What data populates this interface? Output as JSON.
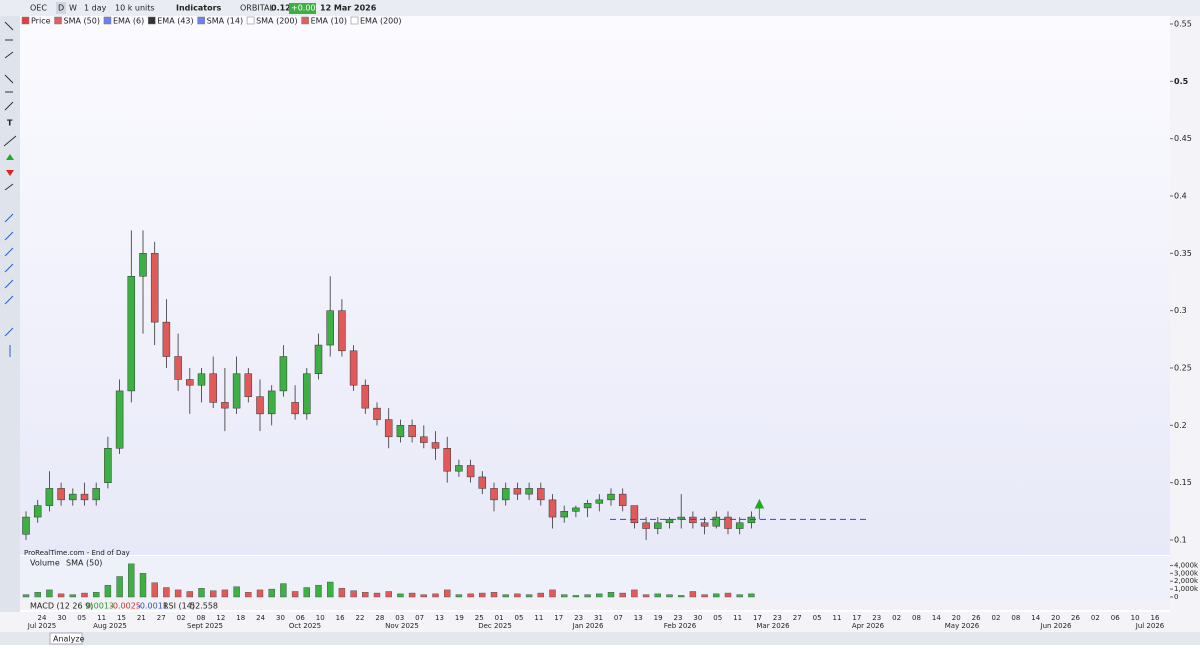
{
  "toolbar": {
    "symbol": "OEC",
    "period_buttons": [
      "D",
      "W"
    ],
    "interval": "1 day",
    "units": "10 k units",
    "indicators": "Indicators",
    "name": "ORBITAL",
    "price": "0.120",
    "change": "+0.00%",
    "date": "12 Mar 2026"
  },
  "legend": [
    {
      "name": "Price",
      "color": "#e04040"
    },
    {
      "name": "SMA (50)",
      "color": "#e06060"
    },
    {
      "name": "EMA (6)",
      "color": "#6f7ff0"
    },
    {
      "name": "EMA (43)",
      "color": "#333333"
    },
    {
      "name": "SMA (14)",
      "color": "#6f7ff0"
    },
    {
      "name": "SMA (200)",
      "color": "#ffffff"
    },
    {
      "name": "EMA (10)",
      "color": "#e06060"
    },
    {
      "name": "EMA (200)",
      "color": "#ffffff"
    }
  ],
  "watermark": "ProRealTime.com - End of Day",
  "chart_data": {
    "type": "candlestick",
    "up_color": "#3cb043",
    "down_color": "#e05a5a",
    "ylim": [
      0.1,
      0.55
    ],
    "yticks": [
      0.1,
      0.15,
      0.2,
      0.25,
      0.3,
      0.35,
      0.4,
      0.45,
      0.5,
      0.55
    ],
    "candles": [
      [
        0.105,
        0.125,
        0.1,
        0.12
      ],
      [
        0.12,
        0.135,
        0.115,
        0.13
      ],
      [
        0.13,
        0.16,
        0.125,
        0.145
      ],
      [
        0.145,
        0.15,
        0.13,
        0.135
      ],
      [
        0.135,
        0.145,
        0.13,
        0.14
      ],
      [
        0.14,
        0.15,
        0.13,
        0.135
      ],
      [
        0.135,
        0.15,
        0.13,
        0.145
      ],
      [
        0.15,
        0.19,
        0.145,
        0.18
      ],
      [
        0.18,
        0.24,
        0.175,
        0.23
      ],
      [
        0.23,
        0.37,
        0.22,
        0.33
      ],
      [
        0.33,
        0.37,
        0.28,
        0.35
      ],
      [
        0.35,
        0.36,
        0.27,
        0.29
      ],
      [
        0.29,
        0.31,
        0.25,
        0.26
      ],
      [
        0.26,
        0.28,
        0.23,
        0.24
      ],
      [
        0.24,
        0.25,
        0.21,
        0.235
      ],
      [
        0.235,
        0.25,
        0.22,
        0.245
      ],
      [
        0.245,
        0.26,
        0.215,
        0.22
      ],
      [
        0.22,
        0.25,
        0.195,
        0.215
      ],
      [
        0.215,
        0.26,
        0.21,
        0.245
      ],
      [
        0.245,
        0.25,
        0.22,
        0.225
      ],
      [
        0.225,
        0.24,
        0.195,
        0.21
      ],
      [
        0.21,
        0.235,
        0.2,
        0.23
      ],
      [
        0.23,
        0.27,
        0.225,
        0.26
      ],
      [
        0.22,
        0.235,
        0.205,
        0.21
      ],
      [
        0.21,
        0.25,
        0.205,
        0.245
      ],
      [
        0.245,
        0.28,
        0.24,
        0.27
      ],
      [
        0.27,
        0.33,
        0.26,
        0.3
      ],
      [
        0.3,
        0.31,
        0.26,
        0.265
      ],
      [
        0.265,
        0.27,
        0.23,
        0.235
      ],
      [
        0.235,
        0.24,
        0.21,
        0.215
      ],
      [
        0.215,
        0.22,
        0.2,
        0.205
      ],
      [
        0.205,
        0.215,
        0.18,
        0.19
      ],
      [
        0.19,
        0.205,
        0.185,
        0.2
      ],
      [
        0.2,
        0.205,
        0.185,
        0.19
      ],
      [
        0.19,
        0.2,
        0.18,
        0.185
      ],
      [
        0.185,
        0.195,
        0.17,
        0.18
      ],
      [
        0.18,
        0.19,
        0.15,
        0.16
      ],
      [
        0.16,
        0.17,
        0.155,
        0.165
      ],
      [
        0.165,
        0.17,
        0.15,
        0.155
      ],
      [
        0.155,
        0.16,
        0.14,
        0.145
      ],
      [
        0.145,
        0.15,
        0.125,
        0.135
      ],
      [
        0.135,
        0.15,
        0.13,
        0.145
      ],
      [
        0.145,
        0.15,
        0.135,
        0.14
      ],
      [
        0.14,
        0.15,
        0.135,
        0.145
      ],
      [
        0.145,
        0.15,
        0.13,
        0.135
      ],
      [
        0.135,
        0.14,
        0.11,
        0.12
      ],
      [
        0.12,
        0.13,
        0.115,
        0.125
      ],
      [
        0.125,
        0.13,
        0.12,
        0.128
      ],
      [
        0.128,
        0.135,
        0.12,
        0.132
      ],
      [
        0.132,
        0.14,
        0.125,
        0.135
      ],
      [
        0.135,
        0.145,
        0.13,
        0.14
      ],
      [
        0.14,
        0.145,
        0.125,
        0.13
      ],
      [
        0.13,
        0.13,
        0.11,
        0.115
      ],
      [
        0.115,
        0.12,
        0.1,
        0.11
      ],
      [
        0.11,
        0.12,
        0.105,
        0.115
      ],
      [
        0.115,
        0.12,
        0.11,
        0.118
      ],
      [
        0.118,
        0.14,
        0.11,
        0.12
      ],
      [
        0.12,
        0.125,
        0.11,
        0.115
      ],
      [
        0.115,
        0.12,
        0.105,
        0.112
      ],
      [
        0.112,
        0.125,
        0.11,
        0.12
      ],
      [
        0.12,
        0.125,
        0.105,
        0.11
      ],
      [
        0.11,
        0.12,
        0.105,
        0.115
      ],
      [
        0.115,
        0.125,
        0.11,
        0.12
      ]
    ],
    "hline": 0.118,
    "volume_title": "Volume",
    "volume_sma": "SMA (50)",
    "volume_ylim": [
      0,
      4500
    ],
    "volume_yticks": [
      {
        "value": 4000,
        "label": "4,000k"
      },
      {
        "value": 3000,
        "label": "3,000k"
      },
      {
        "value": 2000,
        "label": "2,000k"
      },
      {
        "value": 1000,
        "label": "1,000k"
      },
      0
    ],
    "volumes": [
      300,
      600,
      900,
      400,
      300,
      500,
      600,
      1500,
      2600,
      4200,
      3000,
      1800,
      1200,
      900,
      700,
      1100,
      800,
      900,
      1300,
      600,
      900,
      1000,
      1700,
      700,
      1200,
      1500,
      1900,
      1100,
      800,
      600,
      500,
      700,
      400,
      500,
      300,
      400,
      900,
      300,
      400,
      500,
      600,
      300,
      400,
      300,
      500,
      900,
      300,
      200,
      300,
      400,
      600,
      500,
      900,
      300,
      400,
      300,
      200,
      700,
      300,
      400,
      500,
      300,
      400
    ],
    "date_labels": [
      "24",
      "30",
      "05",
      "11",
      "15",
      "21",
      "27",
      "02",
      "08",
      "12",
      "18",
      "24",
      "30",
      "06",
      "10",
      "16",
      "22",
      "28",
      "03",
      "07",
      "13",
      "19",
      "25",
      "01",
      "05",
      "11",
      "17",
      "23",
      "31",
      "07",
      "13",
      "19",
      "23",
      "30",
      "05",
      "11",
      "17",
      "23",
      "27",
      "05",
      "11",
      "17",
      "23",
      "02",
      "08",
      "14",
      "20",
      "26",
      "02",
      "08",
      "14",
      "20",
      "26",
      "02",
      "06",
      "10",
      "16"
    ],
    "month_labels": [
      "Jul 2025",
      "Aug 2025",
      "Sept 2025",
      "Oct 2025",
      "Nov 2025",
      "Dec 2025",
      "Jan 2026",
      "Feb 2026",
      "Mar 2026",
      "Apr 2026",
      "May 2026",
      "Jun 2026",
      "Jul 2026"
    ]
  },
  "indicator_bar": {
    "macd": "MACD (12 26 9)",
    "macd_values": [
      "0.0013",
      "-0.0025",
      "-0.0011"
    ],
    "rsi": "RSI (14)",
    "rsi_value": "52.558"
  },
  "bottom_bar": {
    "button": "Analyze"
  }
}
